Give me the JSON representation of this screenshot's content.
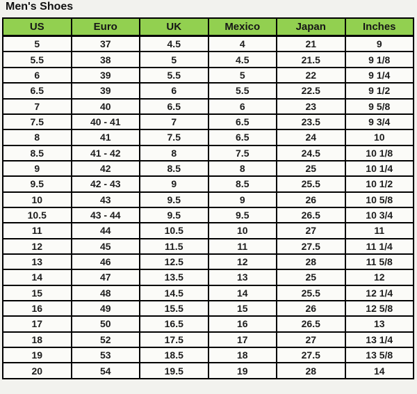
{
  "title": "Men's Shoes",
  "colors": {
    "header_bg": "#92d050",
    "border": "#000000",
    "cell_bg": "#fbfbf8",
    "page_bg": "#f2f2ee",
    "text": "#1c1c1c"
  },
  "chart_data": {
    "type": "table",
    "title": "Men's Shoes",
    "columns": [
      "US",
      "Euro",
      "UK",
      "Mexico",
      "Japan",
      "Inches"
    ],
    "rows": [
      [
        "5",
        "37",
        "4.5",
        "4",
        "21",
        "9"
      ],
      [
        "5.5",
        "38",
        "5",
        "4.5",
        "21.5",
        "9 1/8"
      ],
      [
        "6",
        "39",
        "5.5",
        "5",
        "22",
        "9 1/4"
      ],
      [
        "6.5",
        "39",
        "6",
        "5.5",
        "22.5",
        "9 1/2"
      ],
      [
        "7",
        "40",
        "6.5",
        "6",
        "23",
        "9 5/8"
      ],
      [
        "7.5",
        "40 - 41",
        "7",
        "6.5",
        "23.5",
        "9 3/4"
      ],
      [
        "8",
        "41",
        "7.5",
        "6.5",
        "24",
        "10"
      ],
      [
        "8.5",
        "41 - 42",
        "8",
        "7.5",
        "24.5",
        "10 1/8"
      ],
      [
        "9",
        "42",
        "8.5",
        "8",
        "25",
        "10 1/4"
      ],
      [
        "9.5",
        "42 - 43",
        "9",
        "8.5",
        "25.5",
        "10 1/2"
      ],
      [
        "10",
        "43",
        "9.5",
        "9",
        "26",
        "10 5/8"
      ],
      [
        "10.5",
        "43 - 44",
        "9.5",
        "9.5",
        "26.5",
        "10 3/4"
      ],
      [
        "11",
        "44",
        "10.5",
        "10",
        "27",
        "11"
      ],
      [
        "12",
        "45",
        "11.5",
        "11",
        "27.5",
        "11 1/4"
      ],
      [
        "13",
        "46",
        "12.5",
        "12",
        "28",
        "11 5/8"
      ],
      [
        "14",
        "47",
        "13.5",
        "13",
        "25",
        "12"
      ],
      [
        "15",
        "48",
        "14.5",
        "14",
        "25.5",
        "12 1/4"
      ],
      [
        "16",
        "49",
        "15.5",
        "15",
        "26",
        "12 5/8"
      ],
      [
        "17",
        "50",
        "16.5",
        "16",
        "26.5",
        "13"
      ],
      [
        "18",
        "52",
        "17.5",
        "17",
        "27",
        "13 1/4"
      ],
      [
        "19",
        "53",
        "18.5",
        "18",
        "27.5",
        "13 5/8"
      ],
      [
        "20",
        "54",
        "19.5",
        "19",
        "28",
        "14"
      ]
    ]
  }
}
